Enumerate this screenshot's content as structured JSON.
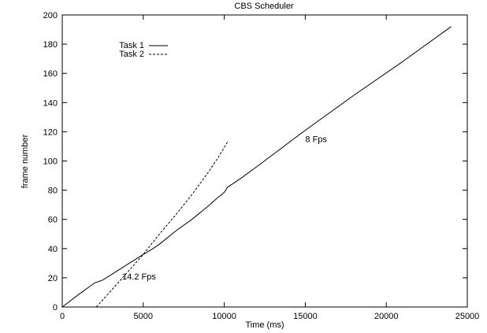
{
  "chart_data": {
    "type": "line",
    "title": "CBS Scheduler",
    "xlabel": "Time (ms)",
    "ylabel": "frame number",
    "xlim": [
      0,
      25000
    ],
    "ylim": [
      0,
      200
    ],
    "xticks": [
      0,
      5000,
      10000,
      15000,
      20000,
      25000
    ],
    "yticks": [
      0,
      20,
      40,
      60,
      80,
      100,
      120,
      140,
      160,
      180,
      200
    ],
    "xtick_labels": [
      "0",
      "5000",
      "10000",
      "15000",
      "20000",
      "25000"
    ],
    "ytick_labels": [
      "0",
      "20",
      "40",
      "60",
      "80",
      "100",
      "120",
      "140",
      "160",
      "180",
      "200"
    ],
    "grid": false,
    "legend_position": "top-left",
    "series": [
      {
        "name": "Task 1",
        "style": "solid",
        "color": "#000000",
        "points": [
          [
            0,
            0
          ],
          [
            1000,
            8.5
          ],
          [
            2000,
            16.5
          ],
          [
            2500,
            18.5
          ],
          [
            3000,
            22
          ],
          [
            4000,
            29
          ],
          [
            5000,
            36
          ],
          [
            5600,
            40
          ],
          [
            6000,
            43
          ],
          [
            7000,
            52
          ],
          [
            8000,
            60
          ],
          [
            9000,
            69
          ],
          [
            9600,
            75
          ],
          [
            10000,
            78.5
          ],
          [
            10200,
            82
          ],
          [
            11000,
            88
          ],
          [
            12000,
            96
          ],
          [
            15000,
            121
          ],
          [
            18000,
            145
          ],
          [
            21000,
            168
          ],
          [
            24000,
            192
          ]
        ]
      },
      {
        "name": "Task 2",
        "style": "dashed",
        "color": "#000000",
        "points": [
          [
            2100,
            0
          ],
          [
            3000,
            11
          ],
          [
            4000,
            23.5
          ],
          [
            5000,
            36
          ],
          [
            5500,
            43
          ],
          [
            6000,
            50
          ],
          [
            7000,
            63
          ],
          [
            8000,
            77
          ],
          [
            9000,
            92
          ],
          [
            9600,
            102
          ],
          [
            10200,
            113
          ]
        ]
      }
    ],
    "annotations": [
      {
        "text": "8 Fps",
        "x": 15000,
        "y": 113
      },
      {
        "text": "14.2 Fps",
        "x": 3700,
        "y": 19
      }
    ]
  }
}
